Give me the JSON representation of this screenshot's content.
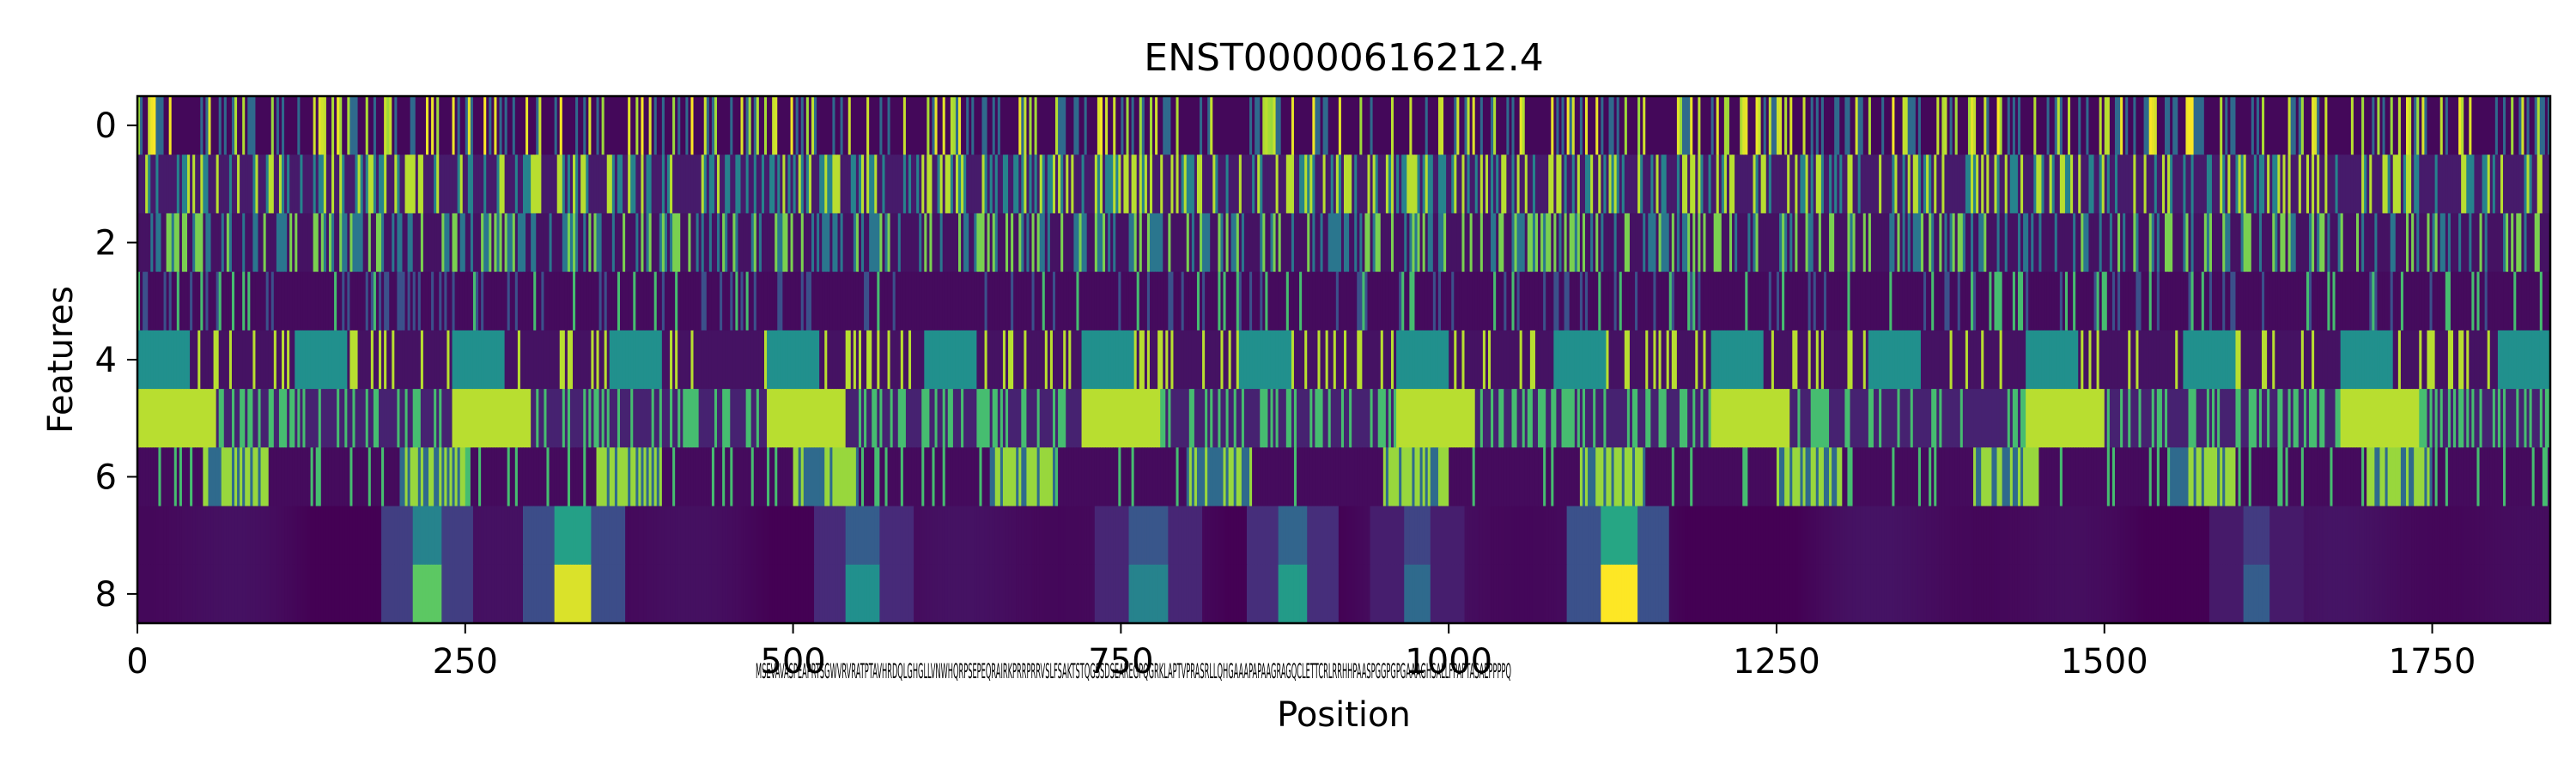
{
  "chart_data": {
    "type": "heatmap",
    "title": "ENST00000616212.4",
    "xlabel": "Position",
    "ylabel": "Features",
    "xlim": [
      0,
      1840
    ],
    "ylim": [
      8.5,
      -0.5
    ],
    "n_positions": 1840,
    "n_features": 9,
    "x_ticks": [
      0,
      250,
      500,
      750,
      1000,
      1250,
      1500,
      1750
    ],
    "y_ticks": [
      0,
      2,
      4,
      6,
      8
    ],
    "colormap": "viridis",
    "value_range": [
      0,
      1
    ],
    "grid": false,
    "legend": "none",
    "dense_label_cluster_text": "MSEVAVASPEAPRTSGWVRVRATPTAVHRDQLGHGLLVNWHQRPSEPEQRAIRKPRRPRRVSLFSAKTSTQGSSDSEAREGPQGRKLAPTVPRASRLLQHGAAAPAPAAGRAGQCLETTCRLRRHHPAASPGGPGPGAAAGHSALLFPAPTASAEPPPPQ",
    "notes": "Per-position 9-feature signal track; rows 0-3 show high-frequency nucleotide-like spikes, rows 4-6 show blocky codon-frame banding, rows 7-8 show smooth low-intensity coverage with bright regions near positions 205-230, 318-345, 1115-1140."
  }
}
